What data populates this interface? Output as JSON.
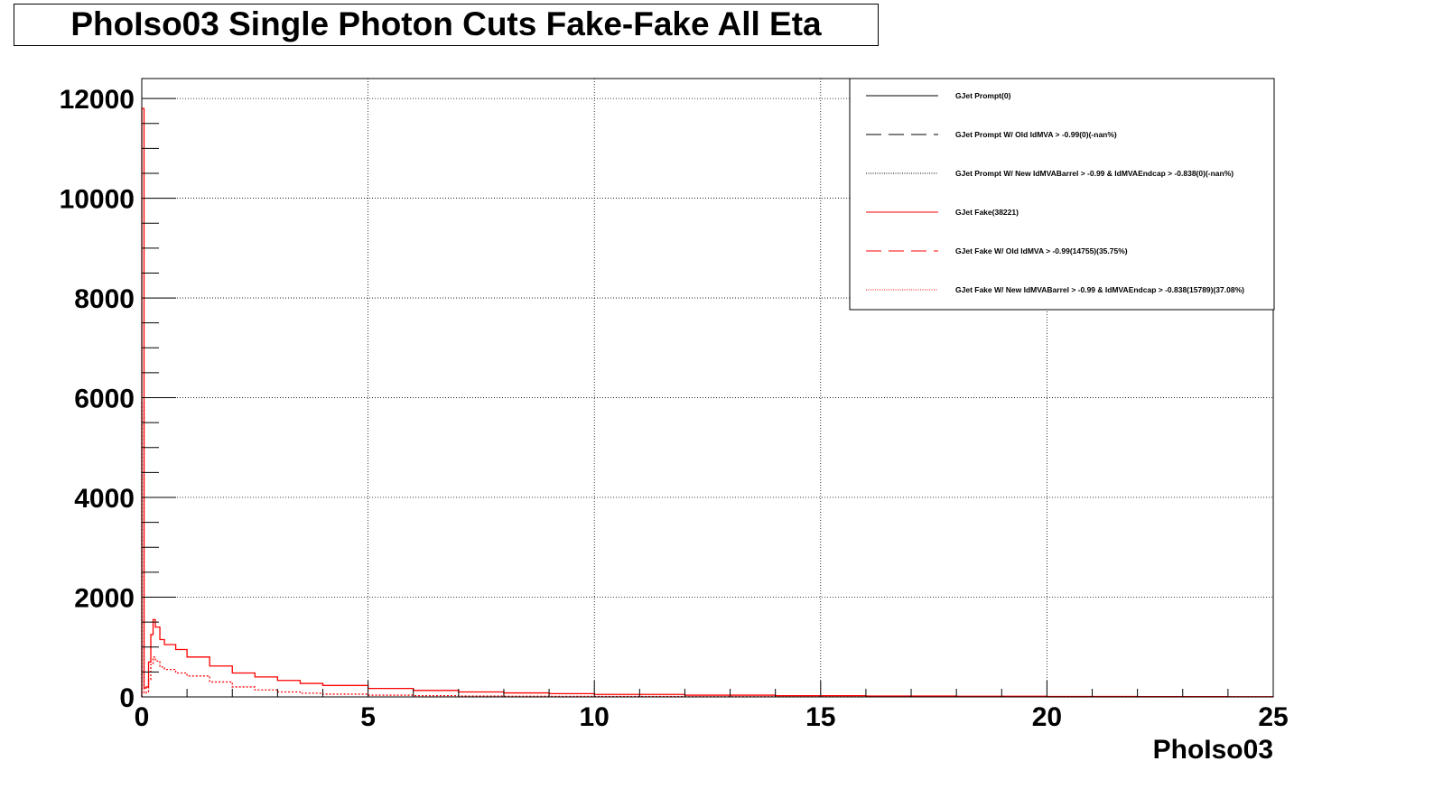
{
  "chart_data": {
    "type": "line",
    "title": "PhoIso03 Single Photon Cuts Fake-Fake All Eta",
    "xlabel": "PhoIso03",
    "ylabel": "",
    "xlim": [
      0,
      25
    ],
    "ylim": [
      0,
      12400
    ],
    "x_ticks": [
      0,
      5,
      10,
      15,
      20,
      25
    ],
    "y_ticks": [
      0,
      2000,
      4000,
      6000,
      8000,
      10000,
      12000
    ],
    "grid": true,
    "legend_position": "top-right",
    "series": [
      {
        "name": "GJet Prompt(0)",
        "color": "#000000",
        "style": "solid",
        "x": [],
        "y": []
      },
      {
        "name": "GJet Prompt W/ Old IdMVA > -0.99(0)(-nan%)",
        "color": "#000000",
        "style": "dashed",
        "x": [],
        "y": []
      },
      {
        "name": "GJet Prompt W/ New IdMVABarrel > -0.99 & IdMVAEndcap > -0.838(0)(-nan%)",
        "color": "#000000",
        "style": "dotted",
        "x": [],
        "y": []
      },
      {
        "name": "GJet Fake(38221)",
        "color": "#ff0000",
        "style": "solid",
        "x": [
          0,
          0.05,
          0.1,
          0.15,
          0.2,
          0.25,
          0.3,
          0.4,
          0.5,
          0.75,
          1.0,
          1.5,
          2.0,
          2.5,
          3.0,
          3.5,
          4.0,
          5.0,
          6.0,
          7.0,
          8.0,
          9.0,
          10.0,
          12.0,
          14.0,
          16.0,
          18.0,
          20.0,
          22.0,
          24.0,
          25.0
        ],
        "y": [
          11800,
          180,
          200,
          700,
          1250,
          1550,
          1400,
          1150,
          1050,
          950,
          800,
          620,
          480,
          400,
          330,
          270,
          230,
          170,
          130,
          100,
          80,
          65,
          50,
          35,
          25,
          18,
          12,
          8,
          6,
          4,
          3
        ]
      },
      {
        "name": "GJet Fake W/ Old IdMVA > -0.99(14755)(35.75%)",
        "color": "#ff0000",
        "style": "dashed",
        "x": [],
        "y": []
      },
      {
        "name": "GJet Fake W/ New IdMVABarrel > -0.99 & IdMVAEndcap > -0.838(15789)(37.08%)",
        "color": "#ff0000",
        "style": "dotted",
        "x": [
          0,
          0.05,
          0.1,
          0.15,
          0.2,
          0.25,
          0.3,
          0.4,
          0.5,
          0.75,
          1.0,
          1.5,
          2.0,
          2.5,
          3.0,
          3.5,
          4.0,
          5.0,
          6.0,
          7.0,
          8.0,
          9.0,
          10.0,
          12.0,
          14.0,
          16.0,
          18.0,
          20.0,
          22.0,
          24.0,
          25.0
        ],
        "y": [
          5900,
          80,
          100,
          350,
          650,
          800,
          720,
          600,
          550,
          480,
          420,
          300,
          200,
          140,
          100,
          75,
          55,
          35,
          25,
          18,
          14,
          11,
          8,
          5,
          4,
          3,
          2,
          1,
          1,
          0,
          0
        ]
      }
    ]
  }
}
